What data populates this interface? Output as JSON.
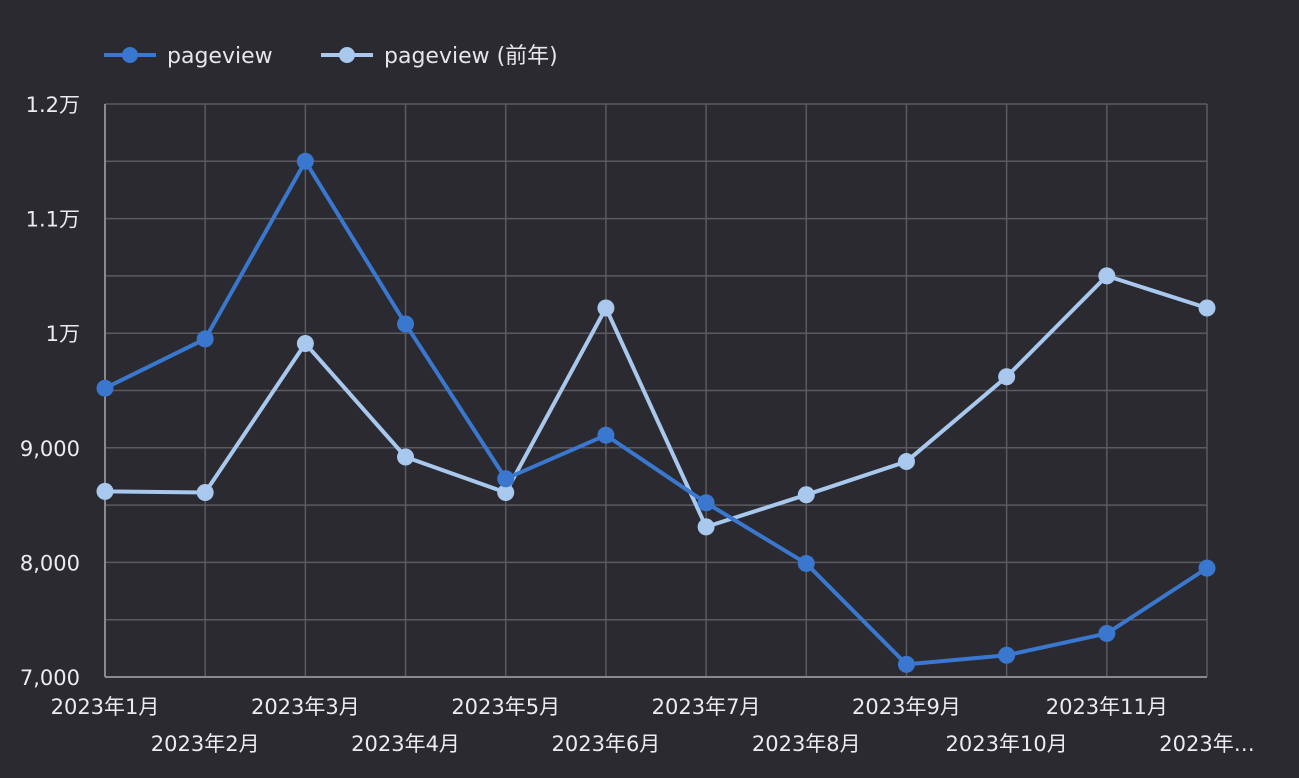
{
  "chart_data": {
    "type": "line",
    "x": [
      "2023年1月",
      "2023年2月",
      "2023年3月",
      "2023年4月",
      "2023年5月",
      "2023年6月",
      "2023年7月",
      "2023年8月",
      "2023年9月",
      "2023年10月",
      "2023年11月",
      "2023年…"
    ],
    "series": [
      {
        "name": "pageview",
        "color": "#3a78d0",
        "values": [
          9520,
          9950,
          11500,
          10080,
          8730,
          9110,
          8520,
          7990,
          7110,
          7190,
          7380,
          7950
        ]
      },
      {
        "name": "pageview (前年)",
        "color": "#a9c8ee",
        "values": [
          8620,
          8610,
          9910,
          8920,
          8610,
          10220,
          8310,
          8590,
          8880,
          9620,
          10500,
          10220
        ]
      }
    ],
    "ylim": [
      7000,
      12000
    ],
    "y_ticks": [
      {
        "value": 12000,
        "label": "1.2万"
      },
      {
        "value": 11000,
        "label": "1.1万"
      },
      {
        "value": 10000,
        "label": "1万"
      },
      {
        "value": 9000,
        "label": "9,000"
      },
      {
        "value": 8000,
        "label": "8,000"
      },
      {
        "value": 7000,
        "label": "7,000"
      }
    ],
    "grid": true,
    "legend_position": "top-left"
  }
}
